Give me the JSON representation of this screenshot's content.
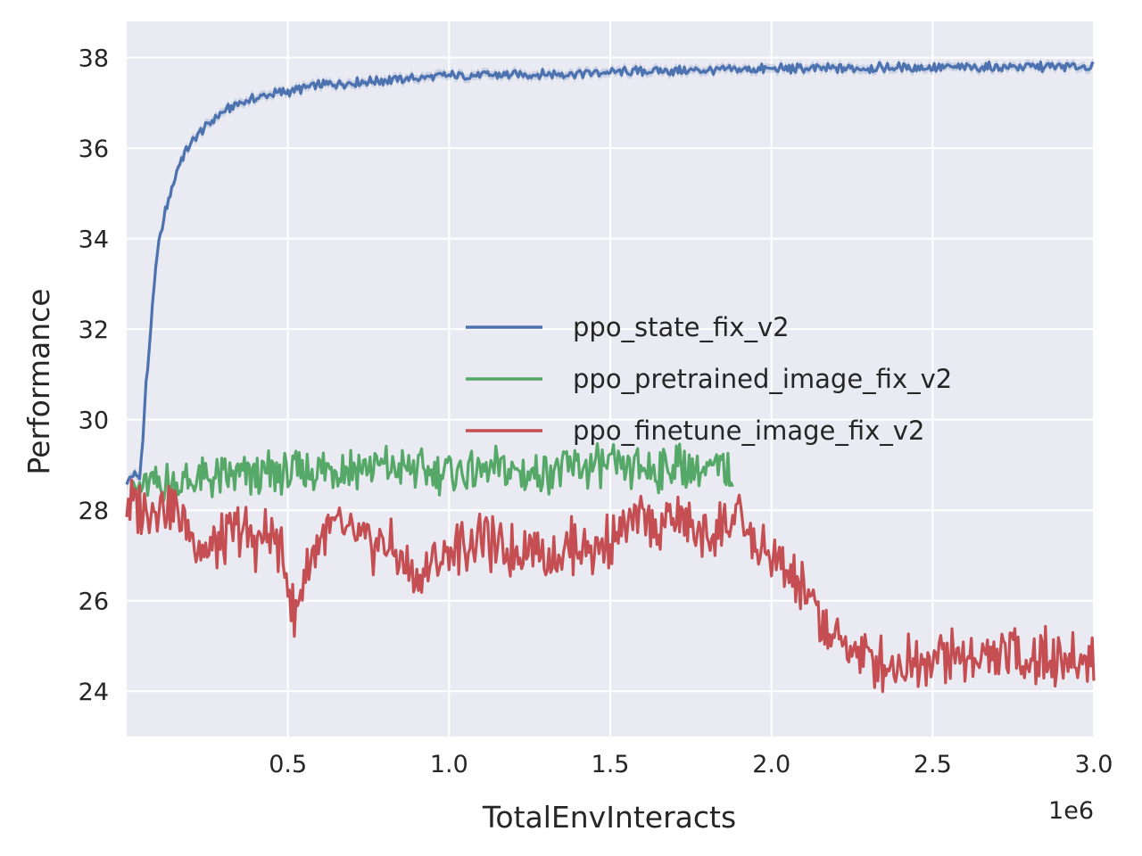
{
  "chart_data": {
    "type": "line",
    "xlabel": "TotalEnvInteracts",
    "ylabel": "Performance",
    "x_offset_label": "1e6",
    "xlim": [
      0.0,
      3.0
    ],
    "ylim": [
      23.0,
      38.8
    ],
    "x_ticks": [
      0.5,
      1.0,
      1.5,
      2.0,
      2.5,
      3.0
    ],
    "x_tick_labels": [
      "0.5",
      "1.0",
      "1.5",
      "2.0",
      "2.5",
      "3.0"
    ],
    "y_ticks": [
      24,
      26,
      28,
      30,
      32,
      34,
      36,
      38
    ],
    "y_tick_labels": [
      "24",
      "26",
      "28",
      "30",
      "32",
      "34",
      "36",
      "38"
    ],
    "grid": true,
    "background": "#EAEAF2",
    "legend_position": "center-right",
    "series": [
      {
        "name": "ppo_state_fix_v2",
        "color": "#4C72B0",
        "band": true,
        "points": [
          [
            0.0,
            28.6
          ],
          [
            0.02,
            28.8
          ],
          [
            0.04,
            28.7
          ],
          [
            0.05,
            29.6
          ],
          [
            0.06,
            30.8
          ],
          [
            0.07,
            31.5
          ],
          [
            0.08,
            32.6
          ],
          [
            0.09,
            33.3
          ],
          [
            0.1,
            33.9
          ],
          [
            0.12,
            34.6
          ],
          [
            0.14,
            35.1
          ],
          [
            0.16,
            35.6
          ],
          [
            0.18,
            35.9
          ],
          [
            0.2,
            36.1
          ],
          [
            0.22,
            36.3
          ],
          [
            0.25,
            36.5
          ],
          [
            0.28,
            36.7
          ],
          [
            0.3,
            36.8
          ],
          [
            0.35,
            37.0
          ],
          [
            0.4,
            37.1
          ],
          [
            0.45,
            37.2
          ],
          [
            0.5,
            37.25
          ],
          [
            0.6,
            37.4
          ],
          [
            0.7,
            37.45
          ],
          [
            0.8,
            37.5
          ],
          [
            0.9,
            37.55
          ],
          [
            1.0,
            37.6
          ],
          [
            1.2,
            37.62
          ],
          [
            1.4,
            37.65
          ],
          [
            1.6,
            37.7
          ],
          [
            1.8,
            37.72
          ],
          [
            2.0,
            37.75
          ],
          [
            2.2,
            37.76
          ],
          [
            2.4,
            37.78
          ],
          [
            2.6,
            37.78
          ],
          [
            2.8,
            37.8
          ],
          [
            3.0,
            37.8
          ]
        ]
      },
      {
        "name": "ppo_pretrained_image_fix_v2",
        "color": "#55A868",
        "band": false,
        "points": [
          [
            0.0,
            28.3
          ],
          [
            0.05,
            28.5
          ],
          [
            0.1,
            28.6
          ],
          [
            0.15,
            28.6
          ],
          [
            0.2,
            28.65
          ],
          [
            0.25,
            28.7
          ],
          [
            0.3,
            28.7
          ],
          [
            0.35,
            28.75
          ],
          [
            0.4,
            28.75
          ],
          [
            0.45,
            28.8
          ],
          [
            0.5,
            28.8
          ],
          [
            0.55,
            28.85
          ],
          [
            0.6,
            28.9
          ],
          [
            0.65,
            28.95
          ],
          [
            0.7,
            28.95
          ],
          [
            0.75,
            28.95
          ],
          [
            0.8,
            28.95
          ],
          [
            0.85,
            28.9
          ],
          [
            0.9,
            28.9
          ],
          [
            0.95,
            28.85
          ],
          [
            1.0,
            28.85
          ],
          [
            1.05,
            28.85
          ],
          [
            1.1,
            28.85
          ],
          [
            1.15,
            28.9
          ],
          [
            1.2,
            28.85
          ],
          [
            1.25,
            28.8
          ],
          [
            1.3,
            28.9
          ],
          [
            1.35,
            28.9
          ],
          [
            1.4,
            28.95
          ],
          [
            1.45,
            28.95
          ],
          [
            1.5,
            28.95
          ],
          [
            1.55,
            28.9
          ],
          [
            1.6,
            28.95
          ],
          [
            1.65,
            28.9
          ],
          [
            1.7,
            29.0
          ],
          [
            1.75,
            28.95
          ],
          [
            1.8,
            28.85
          ],
          [
            1.85,
            28.9
          ],
          [
            1.88,
            28.8
          ]
        ]
      },
      {
        "name": "ppo_finetune_image_fix_v2",
        "color": "#C44E52",
        "band": false,
        "points": [
          [
            0.0,
            28.2
          ],
          [
            0.05,
            28.0
          ],
          [
            0.1,
            28.2
          ],
          [
            0.15,
            28.0
          ],
          [
            0.2,
            27.5
          ],
          [
            0.25,
            27.1
          ],
          [
            0.3,
            27.3
          ],
          [
            0.35,
            27.6
          ],
          [
            0.4,
            27.3
          ],
          [
            0.45,
            27.5
          ],
          [
            0.5,
            26.6
          ],
          [
            0.52,
            25.5
          ],
          [
            0.55,
            26.6
          ],
          [
            0.6,
            27.4
          ],
          [
            0.65,
            27.6
          ],
          [
            0.7,
            27.4
          ],
          [
            0.75,
            27.2
          ],
          [
            0.8,
            27.3
          ],
          [
            0.85,
            26.9
          ],
          [
            0.9,
            26.5
          ],
          [
            0.95,
            26.8
          ],
          [
            1.0,
            27.1
          ],
          [
            1.05,
            27.2
          ],
          [
            1.1,
            27.5
          ],
          [
            1.15,
            27.1
          ],
          [
            1.2,
            27.1
          ],
          [
            1.25,
            27.3
          ],
          [
            1.3,
            27.0
          ],
          [
            1.35,
            27.1
          ],
          [
            1.4,
            27.3
          ],
          [
            1.45,
            27.1
          ],
          [
            1.5,
            27.4
          ],
          [
            1.55,
            27.6
          ],
          [
            1.6,
            27.8
          ],
          [
            1.65,
            27.6
          ],
          [
            1.7,
            27.9
          ],
          [
            1.75,
            27.6
          ],
          [
            1.8,
            27.4
          ],
          [
            1.85,
            27.7
          ],
          [
            1.9,
            27.8
          ],
          [
            1.95,
            27.2
          ],
          [
            2.0,
            26.9
          ],
          [
            2.05,
            26.6
          ],
          [
            2.1,
            26.2
          ],
          [
            2.15,
            25.6
          ],
          [
            2.2,
            25.1
          ],
          [
            2.25,
            25.0
          ],
          [
            2.3,
            24.7
          ],
          [
            2.35,
            24.6
          ],
          [
            2.4,
            24.6
          ],
          [
            2.45,
            24.7
          ],
          [
            2.5,
            24.8
          ],
          [
            2.55,
            24.8
          ],
          [
            2.6,
            24.7
          ],
          [
            2.65,
            24.8
          ],
          [
            2.7,
            24.7
          ],
          [
            2.75,
            24.9
          ],
          [
            2.8,
            24.7
          ],
          [
            2.85,
            24.8
          ],
          [
            2.9,
            24.7
          ],
          [
            2.95,
            24.6
          ],
          [
            3.0,
            24.8
          ]
        ]
      }
    ]
  }
}
